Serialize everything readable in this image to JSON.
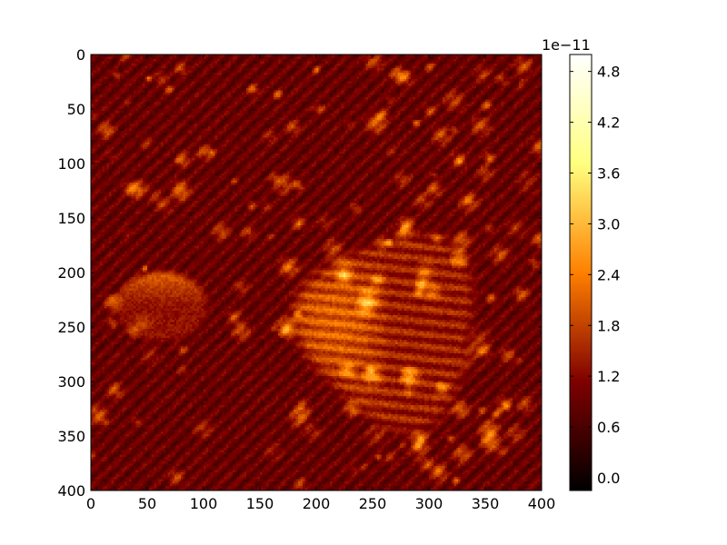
{
  "chart_data": {
    "type": "heatmap",
    "colormap": "afmhot",
    "x_ticks": [
      0,
      50,
      100,
      150,
      200,
      250,
      300,
      350,
      400
    ],
    "y_ticks": [
      0,
      50,
      100,
      150,
      200,
      250,
      300,
      350,
      400
    ],
    "xlim": [
      0,
      400
    ],
    "ylim": [
      400,
      0
    ],
    "colorbar": {
      "ticks": [
        "0.0",
        "0.6",
        "1.2",
        "1.8",
        "2.4",
        "3.0",
        "3.6",
        "4.2",
        "4.8"
      ],
      "tick_values": [
        0.0,
        0.6,
        1.2,
        1.8,
        2.4,
        3.0,
        3.6,
        4.2,
        4.8
      ],
      "range": [
        -0.15,
        5.0
      ],
      "offset_label": "1e−11"
    },
    "description": "AFM-style topography map: a large bright raised plateau at center with diagonal striations, a smaller raised island at left near y=200-260, and many small bright bumps scattered over a striped dark-orange background.",
    "features": {
      "background_level": 0.9,
      "plateau": {
        "center": [
          265,
          255
        ],
        "level": 2.6
      },
      "left_island": {
        "center": [
          62,
          230
        ],
        "level": 2.2
      }
    }
  }
}
